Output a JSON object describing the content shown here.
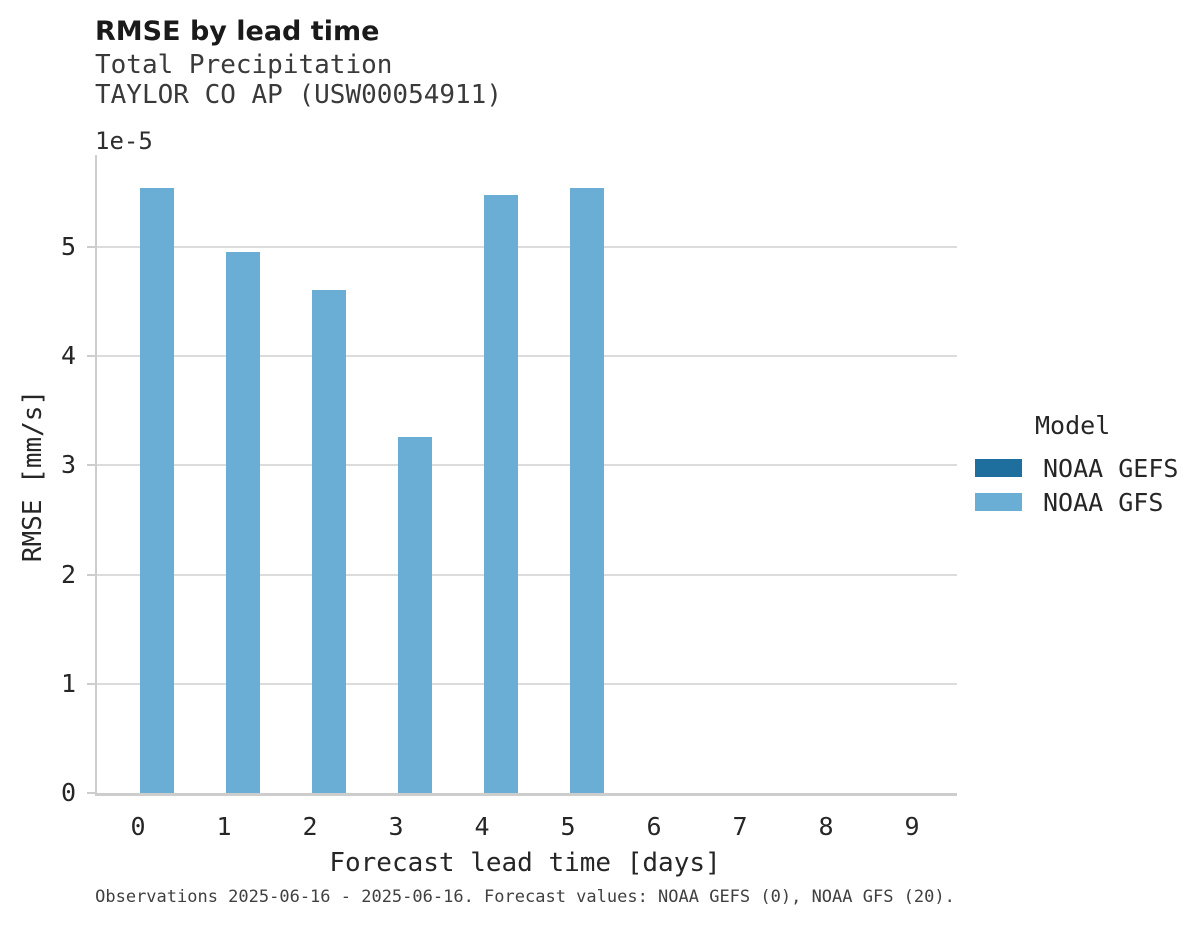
{
  "chart_data": {
    "type": "bar",
    "title": "RMSE by lead time",
    "subtitles": [
      "Total Precipitation",
      "TAYLOR CO AP (USW00054911)"
    ],
    "xlabel": "Forecast lead time [days]",
    "ylabel": "RMSE [mm/s]",
    "y_offset_label": "1e-5",
    "categories": [
      "0",
      "1",
      "2",
      "3",
      "4",
      "5",
      "6",
      "7",
      "8",
      "9"
    ],
    "series": [
      {
        "name": "NOAA GEFS",
        "color": "#1f6f9e",
        "values": [
          null,
          null,
          null,
          null,
          null,
          null,
          null,
          null,
          null,
          null
        ]
      },
      {
        "name": "NOAA GFS",
        "color": "#6aaed6",
        "values": [
          5.54e-05,
          4.95e-05,
          4.6e-05,
          3.26e-05,
          5.47e-05,
          5.54e-05,
          null,
          null,
          null,
          null
        ]
      }
    ],
    "y_ticks": [
      {
        "value": 0,
        "label": "0"
      },
      {
        "value": 1e-05,
        "label": "1"
      },
      {
        "value": 2e-05,
        "label": "2"
      },
      {
        "value": 3e-05,
        "label": "3"
      },
      {
        "value": 4e-05,
        "label": "4"
      },
      {
        "value": 5e-05,
        "label": "5"
      }
    ],
    "ylim": [
      0,
      5.84e-05
    ],
    "grid": "horizontal",
    "legend": {
      "title": "Model",
      "position": "center-right"
    },
    "caption": "Observations 2025-06-16 - 2025-06-16. Forecast values: NOAA GEFS (0), NOAA GFS (20)."
  },
  "colors": {
    "grid": "#dcdcdc",
    "spine": "#cdcdcd",
    "background": "#ffffff"
  }
}
